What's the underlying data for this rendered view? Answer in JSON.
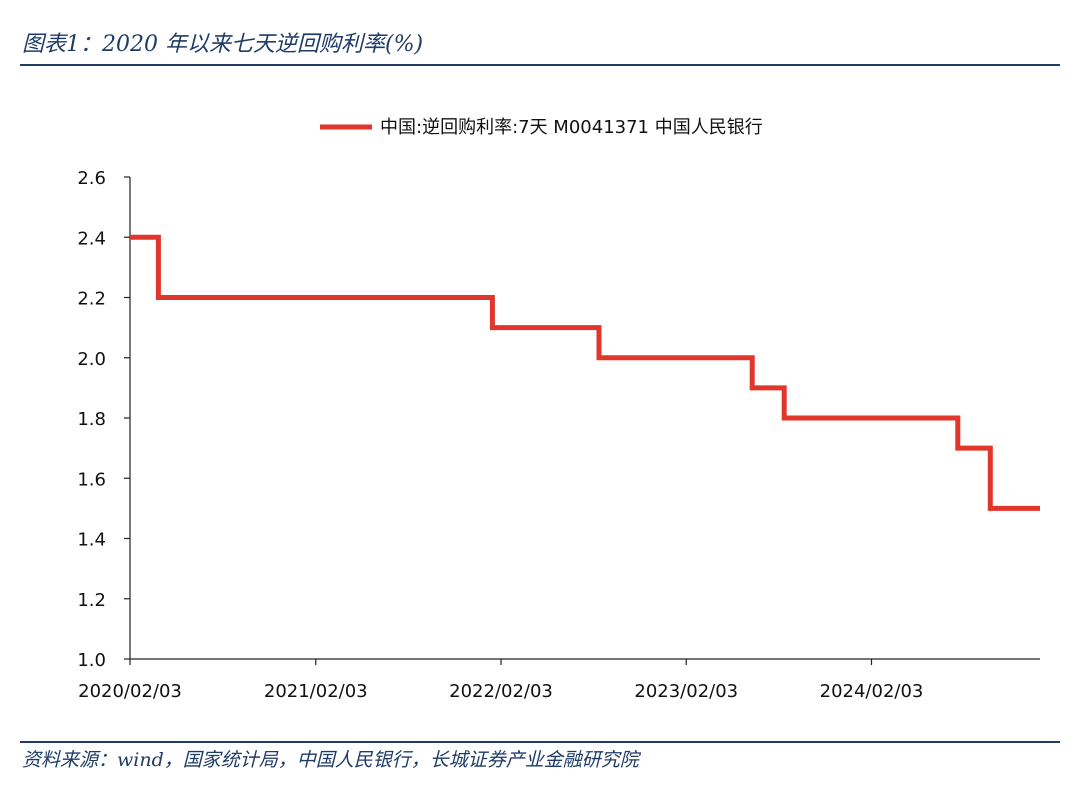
{
  "figure": {
    "title": "图表1：2020 年以来七天逆回购利率(%)",
    "source": "资料来源：wind，国家统计局，中国人民银行，长城证券产业金融研究院"
  },
  "chart_data": {
    "type": "line",
    "title": "",
    "xlabel": "",
    "ylabel": "",
    "ylim": [
      1.0,
      2.6
    ],
    "yticks": [
      "1.0",
      "1.2",
      "1.4",
      "1.6",
      "1.8",
      "2.0",
      "2.2",
      "2.4",
      "2.6"
    ],
    "xlim": [
      "2020-02-03",
      "2024-12-31"
    ],
    "xticks": [
      "2020/02/03",
      "2021/02/03",
      "2022/02/03",
      "2023/02/03",
      "2024/02/03"
    ],
    "grid": false,
    "legend_position": "top-center",
    "series": [
      {
        "name": "中国:逆回购利率:7天 M0041371 中国人民银行",
        "color": "#e0362b",
        "step": true,
        "x": [
          "2020-02-03",
          "2020-02-17",
          "2020-03-30",
          "2022-01-17",
          "2022-08-15",
          "2023-06-13",
          "2023-08-15",
          "2024-07-22",
          "2024-09-24",
          "2024-12-31"
        ],
        "y": [
          2.4,
          2.4,
          2.2,
          2.1,
          2.0,
          1.9,
          1.8,
          1.7,
          1.5,
          1.5
        ]
      }
    ]
  }
}
